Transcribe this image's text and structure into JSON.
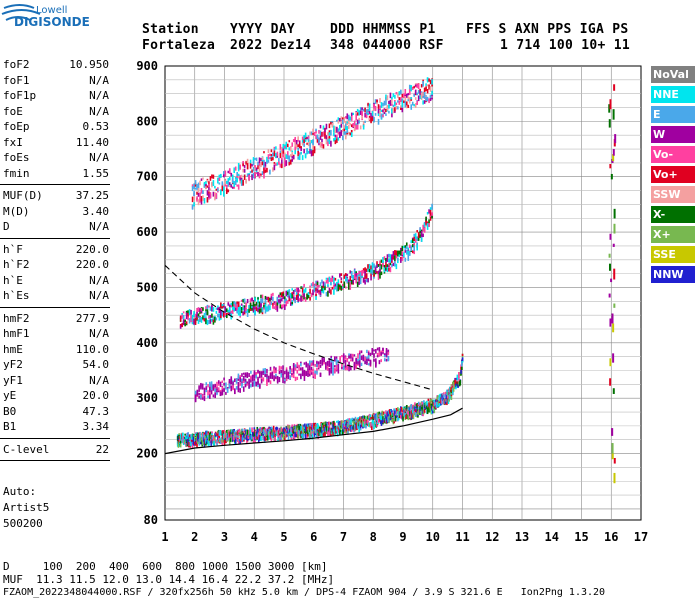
{
  "logo": {
    "line1": "Lowell",
    "line2": "DIGISONDE"
  },
  "header": {
    "row1": [
      "Station",
      "YYYY DAY",
      "DDD HHMMSS P1",
      "FFS S AXN PPS IGA PS"
    ],
    "row2": [
      "Fortaleza",
      "2022 Dez14",
      "348 044000 RSF",
      "1 714 100 10+ 11"
    ]
  },
  "params": [
    {
      "name": "foF2",
      "value": "10.950"
    },
    {
      "name": "foF1",
      "value": "N/A"
    },
    {
      "name": "foF1p",
      "value": "N/A"
    },
    {
      "name": "foE",
      "value": "N/A"
    },
    {
      "name": "foEp",
      "value": "0.53"
    },
    {
      "name": "fxI",
      "value": "11.40"
    },
    {
      "name": "foEs",
      "value": "N/A"
    },
    {
      "name": "fmin",
      "value": "1.55"
    },
    {
      "name": "MUF(D)",
      "value": "37.25"
    },
    {
      "name": "M(D)",
      "value": "3.40"
    },
    {
      "name": "D",
      "value": "N/A"
    },
    {
      "name": "h`F",
      "value": "220.0"
    },
    {
      "name": "h`F2",
      "value": "220.0"
    },
    {
      "name": "h`E",
      "value": "N/A"
    },
    {
      "name": "h`Es",
      "value": "N/A"
    },
    {
      "name": "hmF2",
      "value": "277.9"
    },
    {
      "name": "hmF1",
      "value": "N/A"
    },
    {
      "name": "hmE",
      "value": "110.0"
    },
    {
      "name": "yF2",
      "value": "54.0"
    },
    {
      "name": "yF1",
      "value": "N/A"
    },
    {
      "name": "yE",
      "value": "20.0"
    },
    {
      "name": "B0",
      "value": "47.3"
    },
    {
      "name": "B1",
      "value": "3.34"
    },
    {
      "name": "C-level",
      "value": "22"
    }
  ],
  "auto": {
    "line1": "Auto:",
    "line2": "Artist5",
    "line3": "500200"
  },
  "legend": [
    {
      "label": "NoVal",
      "color": "#808080"
    },
    {
      "label": "NNE",
      "color": "#00e5ee"
    },
    {
      "label": "E",
      "color": "#4aa8ea"
    },
    {
      "label": "W",
      "color": "#a000a0"
    },
    {
      "label": "Vo-",
      "color": "#ff40a0"
    },
    {
      "label": "Vo+",
      "color": "#e00020"
    },
    {
      "label": "SSW",
      "color": "#f4a0a0"
    },
    {
      "label": "X-",
      "color": "#007000"
    },
    {
      "label": "X+",
      "color": "#78b850"
    },
    {
      "label": "SSE",
      "color": "#c8c800"
    },
    {
      "label": "NNW",
      "color": "#2020d0"
    }
  ],
  "footer": {
    "line1": "D     100  200  400  600  800 1000 1500 3000 [km]",
    "line2": "MUF  11.3 11.5 12.0 13.0 14.4 16.4 22.2 37.2 [MHz]",
    "line3": "FZAOM_2022348044000.RSF / 320fx256h 50 kHz 5.0 km / DPS-4 FZAOM 904 / 3.9 S 321.6 E   Ion2Png 1.3.20"
  },
  "chart_data": {
    "type": "scatter",
    "title": "",
    "xlabel": "",
    "ylabel": "",
    "xlim": [
      1,
      17
    ],
    "ylim": [
      80,
      900
    ],
    "x_ticks": [
      "1",
      "2",
      "3",
      "4",
      "5",
      "6",
      "7",
      "8",
      "9",
      "10",
      "11",
      "12",
      "13",
      "14",
      "15",
      "16",
      "17"
    ],
    "y_ticks": [
      {
        "v": 80,
        "label": "80"
      },
      {
        "v": 200,
        "label": "200"
      },
      {
        "v": 300,
        "label": "300"
      },
      {
        "v": 400,
        "label": "400"
      },
      {
        "v": 500,
        "label": "500"
      },
      {
        "v": 600,
        "label": "600"
      },
      {
        "v": 700,
        "label": "700"
      },
      {
        "v": 800,
        "label": "800"
      },
      {
        "v": 900,
        "label": "900"
      }
    ],
    "trace_bands": [
      {
        "name": "F2 O-trace",
        "points": [
          [
            1.4,
            225
          ],
          [
            2,
            228
          ],
          [
            3,
            232
          ],
          [
            4,
            236
          ],
          [
            5,
            240
          ],
          [
            6,
            244
          ],
          [
            7,
            250
          ],
          [
            8,
            262
          ],
          [
            9,
            275
          ],
          [
            10,
            290
          ],
          [
            10.5,
            305
          ],
          [
            10.9,
            340
          ],
          [
            11,
            380
          ]
        ]
      },
      {
        "name": "F2 multi-hop 2",
        "points": [
          [
            1.5,
            440
          ],
          [
            2,
            448
          ],
          [
            3,
            458
          ],
          [
            4,
            468
          ],
          [
            5,
            480
          ],
          [
            6,
            495
          ],
          [
            7,
            512
          ],
          [
            8,
            530
          ],
          [
            9,
            560
          ],
          [
            9.5,
            590
          ],
          [
            10,
            640
          ]
        ]
      },
      {
        "name": "F2 multi-hop 3",
        "points": [
          [
            1.9,
            665
          ],
          [
            2,
            670
          ],
          [
            3,
            690
          ],
          [
            4,
            715
          ],
          [
            5,
            740
          ],
          [
            6,
            765
          ],
          [
            7,
            790
          ],
          [
            8,
            815
          ],
          [
            9,
            840
          ],
          [
            10,
            860
          ]
        ]
      },
      {
        "name": "Spread band",
        "points": [
          [
            2,
            310
          ],
          [
            3,
            322
          ],
          [
            4,
            335
          ],
          [
            5,
            345
          ],
          [
            6,
            355
          ],
          [
            7,
            365
          ],
          [
            8,
            375
          ],
          [
            8.5,
            380
          ]
        ]
      }
    ],
    "profile_line": {
      "name": "",
      "points": [
        [
          1,
          200
        ],
        [
          2,
          210
        ],
        [
          3,
          215
        ],
        [
          4,
          219
        ],
        [
          5,
          223
        ],
        [
          6,
          228
        ],
        [
          7,
          234
        ],
        [
          8,
          240
        ],
        [
          9,
          250
        ],
        [
          10,
          262
        ],
        [
          10.6,
          270
        ],
        [
          11,
          282
        ]
      ]
    },
    "dashed_line": {
      "name": "",
      "points": [
        [
          1,
          540
        ],
        [
          1.5,
          515
        ],
        [
          2,
          490
        ],
        [
          3,
          455
        ],
        [
          4,
          425
        ],
        [
          5,
          400
        ],
        [
          6,
          380
        ],
        [
          7,
          362
        ],
        [
          8,
          345
        ],
        [
          9,
          330
        ],
        [
          10,
          315
        ]
      ]
    }
  }
}
